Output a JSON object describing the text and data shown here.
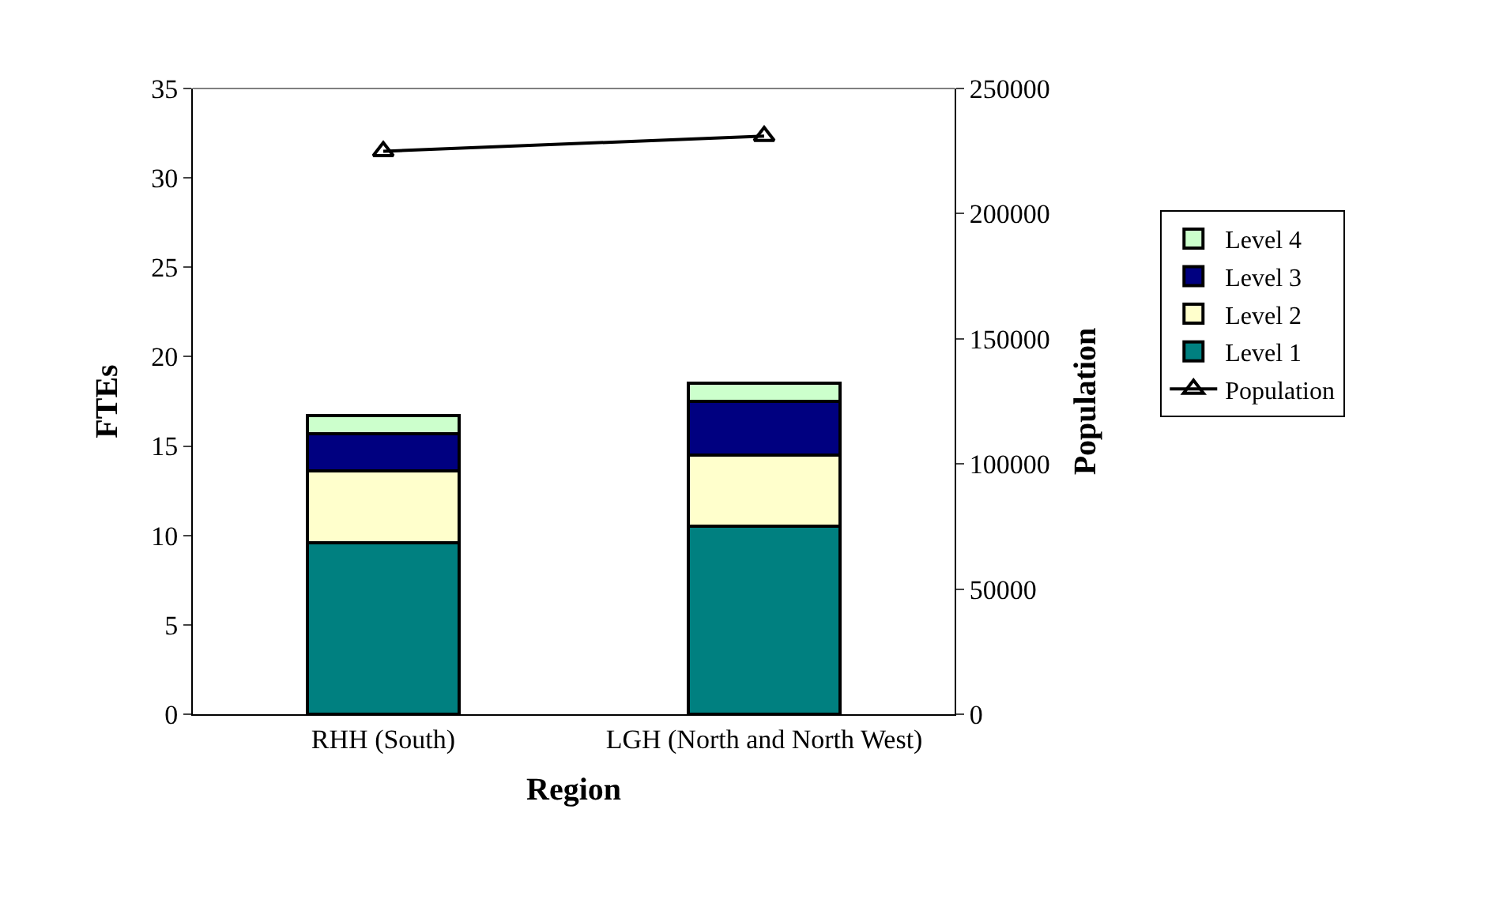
{
  "chart_data": {
    "type": "bar",
    "stacked": true,
    "xlabel": "Region",
    "ylabel": "FTEs",
    "y2label": "Population",
    "categories": [
      "RHH (South)",
      "LGH (North and North West)"
    ],
    "series": [
      {
        "name": "Level 1",
        "color": "#008080",
        "values": [
          9.6,
          10.5
        ]
      },
      {
        "name": "Level 2",
        "color": "#ffffcc",
        "values": [
          4.0,
          4.0
        ]
      },
      {
        "name": "Level 3",
        "color": "#000080",
        "values": [
          2.1,
          3.0
        ]
      },
      {
        "name": "Level 4",
        "color": "#ccffcc",
        "values": [
          1.0,
          1.0
        ]
      },
      {
        "name": "Population",
        "type": "line",
        "axis": "y2",
        "color": "#000000",
        "marker": "triangle",
        "values": [
          224900,
          231000
        ]
      }
    ],
    "ylim": [
      0,
      35
    ],
    "yticks": [
      0,
      5,
      10,
      15,
      20,
      25,
      30,
      35
    ],
    "y2lim": [
      0,
      250000
    ],
    "y2ticks": [
      0,
      50000,
      100000,
      150000,
      200000,
      250000
    ],
    "legend": "right"
  }
}
